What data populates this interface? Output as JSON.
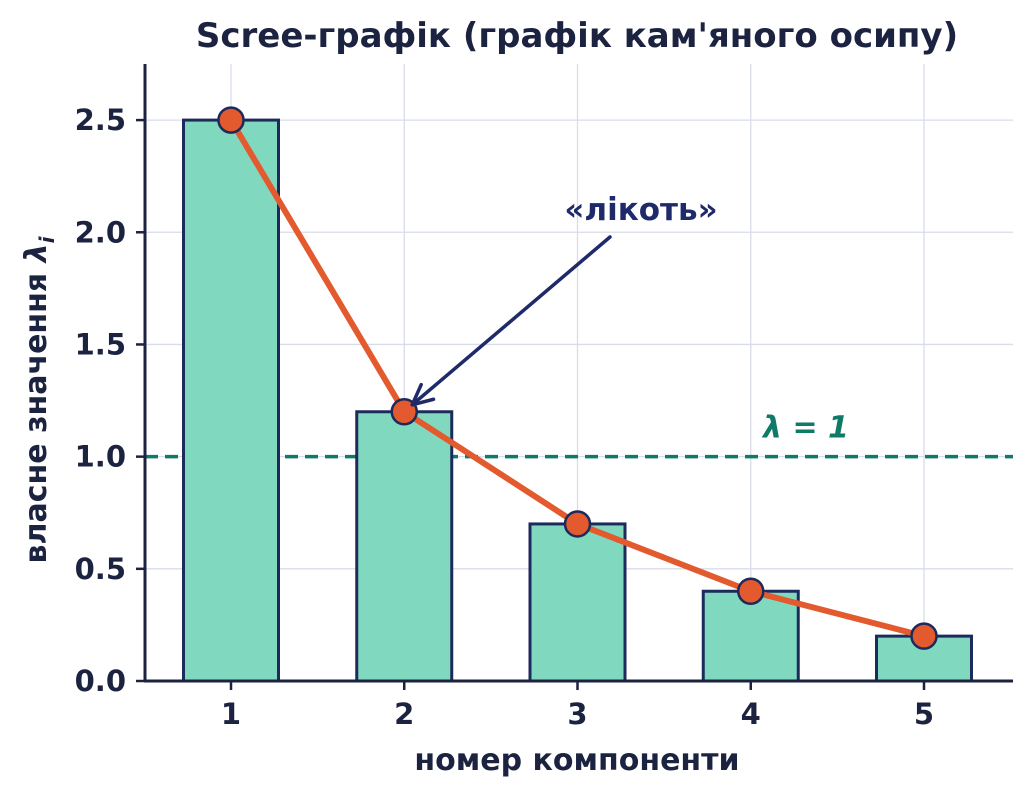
{
  "chart_data": {
    "type": "bar",
    "title": "Scree-графік (графік кам'яного осипу)",
    "xlabel": "номер компоненти",
    "ylabel": "власне значення",
    "ylabel_symbol": "λ",
    "ylabel_subscript": "i",
    "categories": [
      "1",
      "2",
      "3",
      "4",
      "5"
    ],
    "values": [
      2.5,
      1.2,
      0.7,
      0.4,
      0.2
    ],
    "overlay_line": {
      "type": "line",
      "x": [
        1,
        2,
        3,
        4,
        5
      ],
      "y": [
        2.5,
        1.2,
        0.7,
        0.4,
        0.2
      ]
    },
    "y_ticks": [
      "0.0",
      "0.5",
      "1.0",
      "1.5",
      "2.0",
      "2.5"
    ],
    "ylim": [
      0,
      2.75
    ],
    "grid": true,
    "threshold": {
      "value": 1.0,
      "label": "λ = 1"
    },
    "annotation": {
      "text": "«лікоть»",
      "points_to_component": 2
    },
    "colors": {
      "bar_fill": "#80d9bf",
      "bar_edge": "#1c2a5c",
      "line": "#e35a2e",
      "marker_edge": "#1c2a5c",
      "threshold": "#0f7a68",
      "annotation": "#1f2a6b",
      "grid": "#d9dcea",
      "axis": "#1c2340"
    }
  }
}
